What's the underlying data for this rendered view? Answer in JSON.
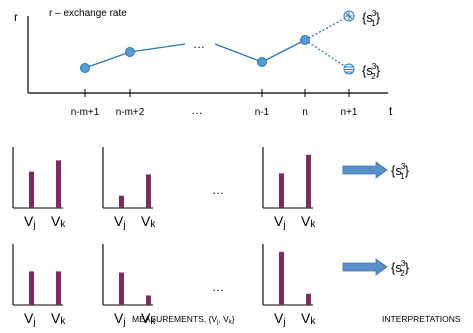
{
  "timeline": {
    "y_axis_label": "r",
    "x_axis_label": "t",
    "legend": "r – exchange rate",
    "ellipsis": "…",
    "ticks": [
      "n-m+1",
      "n-m+2",
      "…",
      "n-1",
      "n",
      "n+1"
    ],
    "states": {
      "upper": {
        "name": "s",
        "sup": "3",
        "sub": "1"
      },
      "lower": {
        "name": "s",
        "sup": "3",
        "sub": "2"
      }
    }
  },
  "histograms": {
    "vj_base": "V",
    "vj_sub": "j",
    "vk_base": "V",
    "vk_sub": "k",
    "ellipsis": "…",
    "rows": [
      {
        "interpretation": {
          "name": "s",
          "sup": "3",
          "sub": "1"
        },
        "panels": [
          {
            "vj": 0.65,
            "vk": 0.85
          },
          {
            "vj": 0.22,
            "vk": 0.6
          },
          {
            "vj": 0.62,
            "vk": 0.95
          }
        ]
      },
      {
        "interpretation": {
          "name": "s",
          "sup": "3",
          "sub": "2"
        },
        "panels": [
          {
            "vj": 0.6,
            "vk": 0.6
          },
          {
            "vj": 0.58,
            "vk": 0.17
          },
          {
            "vj": 0.95,
            "vk": 0.2
          }
        ]
      }
    ]
  },
  "captions": {
    "measurements": "MEASUREMENTS, {V",
    "measurements_j": "j",
    "measurements_sep": ", V",
    "measurements_k": "k",
    "measurements_end": "}",
    "interpretations": "INTERPRETATIONS"
  },
  "colors": {
    "line": "#2e75b6",
    "node_fill": "#5b9bd5",
    "bar": "#7b2d5c",
    "arrow": "#5b8fc9"
  }
}
